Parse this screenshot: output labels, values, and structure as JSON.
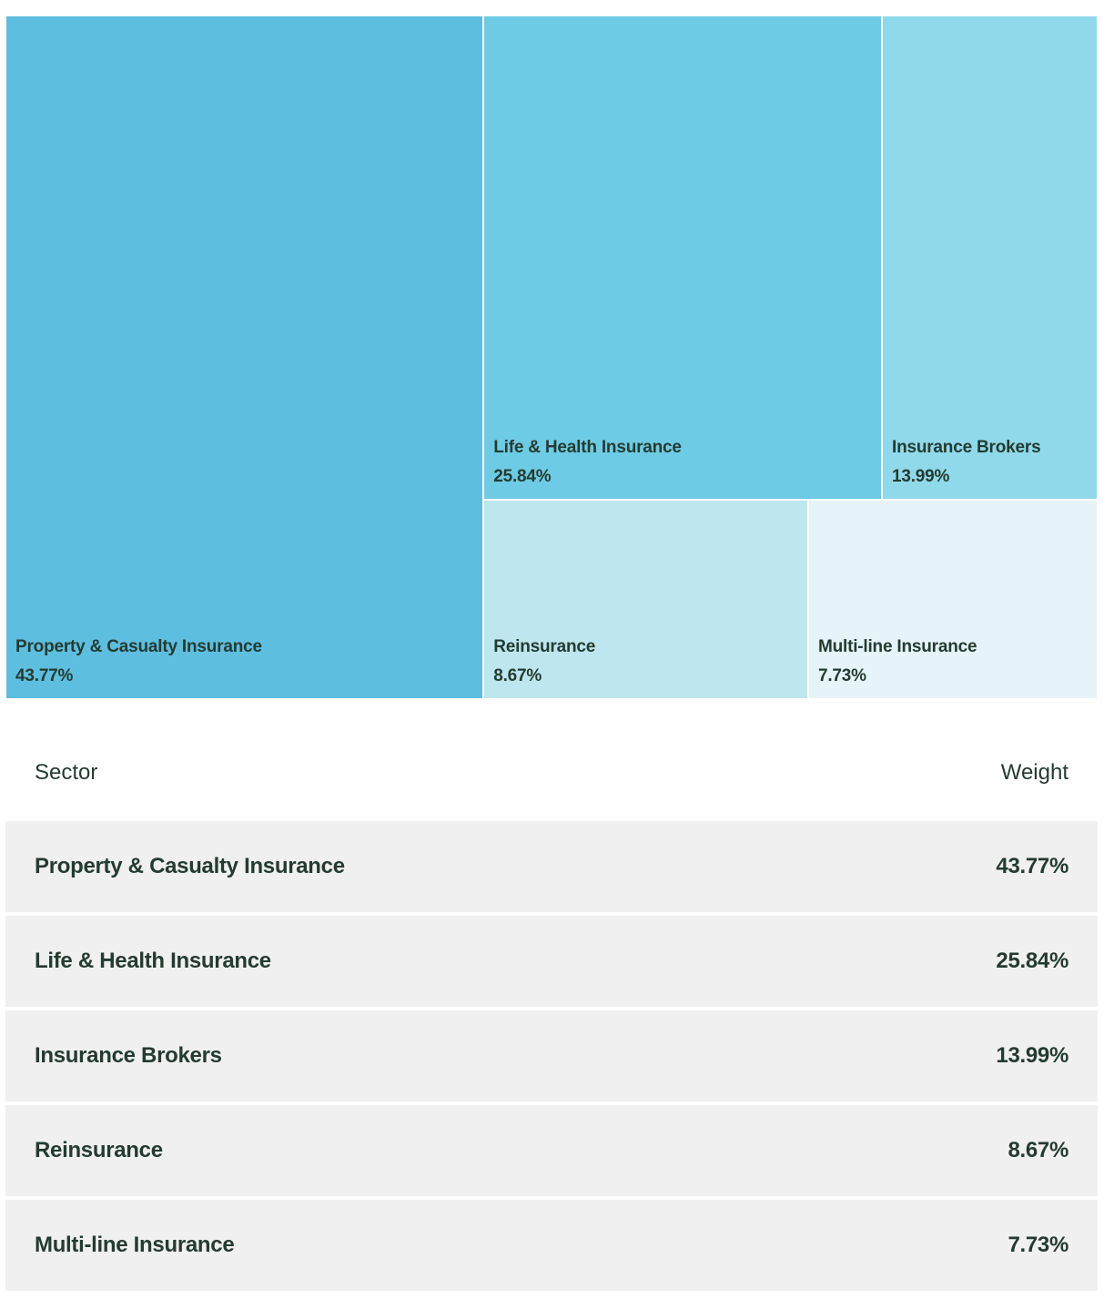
{
  "chart_data": {
    "type": "treemap",
    "categories": [
      "Property & Casualty Insurance",
      "Life & Health Insurance",
      "Insurance Brokers",
      "Reinsurance",
      "Multi-line Insurance"
    ],
    "values": [
      43.77,
      25.84,
      13.99,
      8.67,
      7.73
    ],
    "labels": [
      "43.77%",
      "25.84%",
      "13.99%",
      "8.67%",
      "7.73%"
    ],
    "colors": [
      "#5dbee0",
      "#6ecbe5",
      "#8fd9ea",
      "#bde6ef",
      "#e6f3f8"
    ]
  },
  "table": {
    "header": {
      "sector": "Sector",
      "weight": "Weight"
    },
    "rows": [
      {
        "sector": "Property & Casualty Insurance",
        "weight": "43.77%"
      },
      {
        "sector": "Life & Health Insurance",
        "weight": "25.84%"
      },
      {
        "sector": "Insurance Brokers",
        "weight": "13.99%"
      },
      {
        "sector": "Reinsurance",
        "weight": "8.67%"
      },
      {
        "sector": "Multi-line Insurance",
        "weight": "7.73%"
      }
    ]
  }
}
